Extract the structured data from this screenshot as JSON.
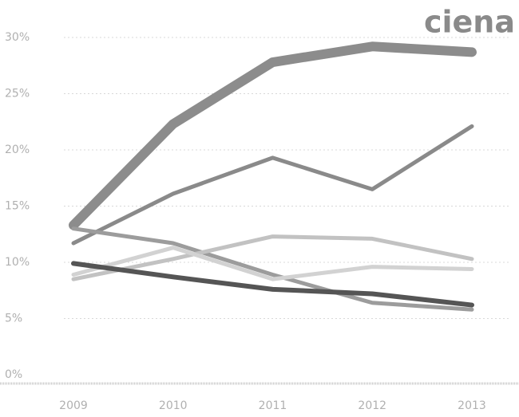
{
  "chart_data": {
    "type": "line",
    "logo": "ciena",
    "categories": [
      "2009",
      "2010",
      "2011",
      "2012",
      "2013"
    ],
    "series": [
      {
        "color": "#8c8c8c",
        "values": [
          13.3,
          22.3,
          27.8,
          29.2,
          28.7
        ]
      },
      {
        "color": "#8a8a8a",
        "values": [
          11.7,
          16.1,
          19.3,
          16.5,
          22.1
        ]
      },
      {
        "color": "#9c9c9c",
        "values": [
          13.0,
          11.7,
          8.9,
          6.4,
          5.8
        ]
      },
      {
        "color": "#c2c2c2",
        "values": [
          8.5,
          10.3,
          12.3,
          12.1,
          10.3
        ]
      },
      {
        "color": "#d2d2d2",
        "values": [
          8.9,
          11.3,
          8.5,
          9.6,
          9.4
        ]
      },
      {
        "color": "#555555",
        "values": [
          9.9,
          8.7,
          7.6,
          7.2,
          6.2
        ]
      }
    ],
    "ylim": [
      0,
      30
    ],
    "yticks": [
      {
        "value": 0,
        "label": "0%"
      },
      {
        "value": 5,
        "label": "5%"
      },
      {
        "value": 10,
        "label": "10%"
      },
      {
        "value": 15,
        "label": "15%"
      },
      {
        "value": 20,
        "label": "20%"
      },
      {
        "value": 25,
        "label": "25%"
      },
      {
        "value": 30,
        "label": "30%"
      }
    ],
    "grid": true
  }
}
